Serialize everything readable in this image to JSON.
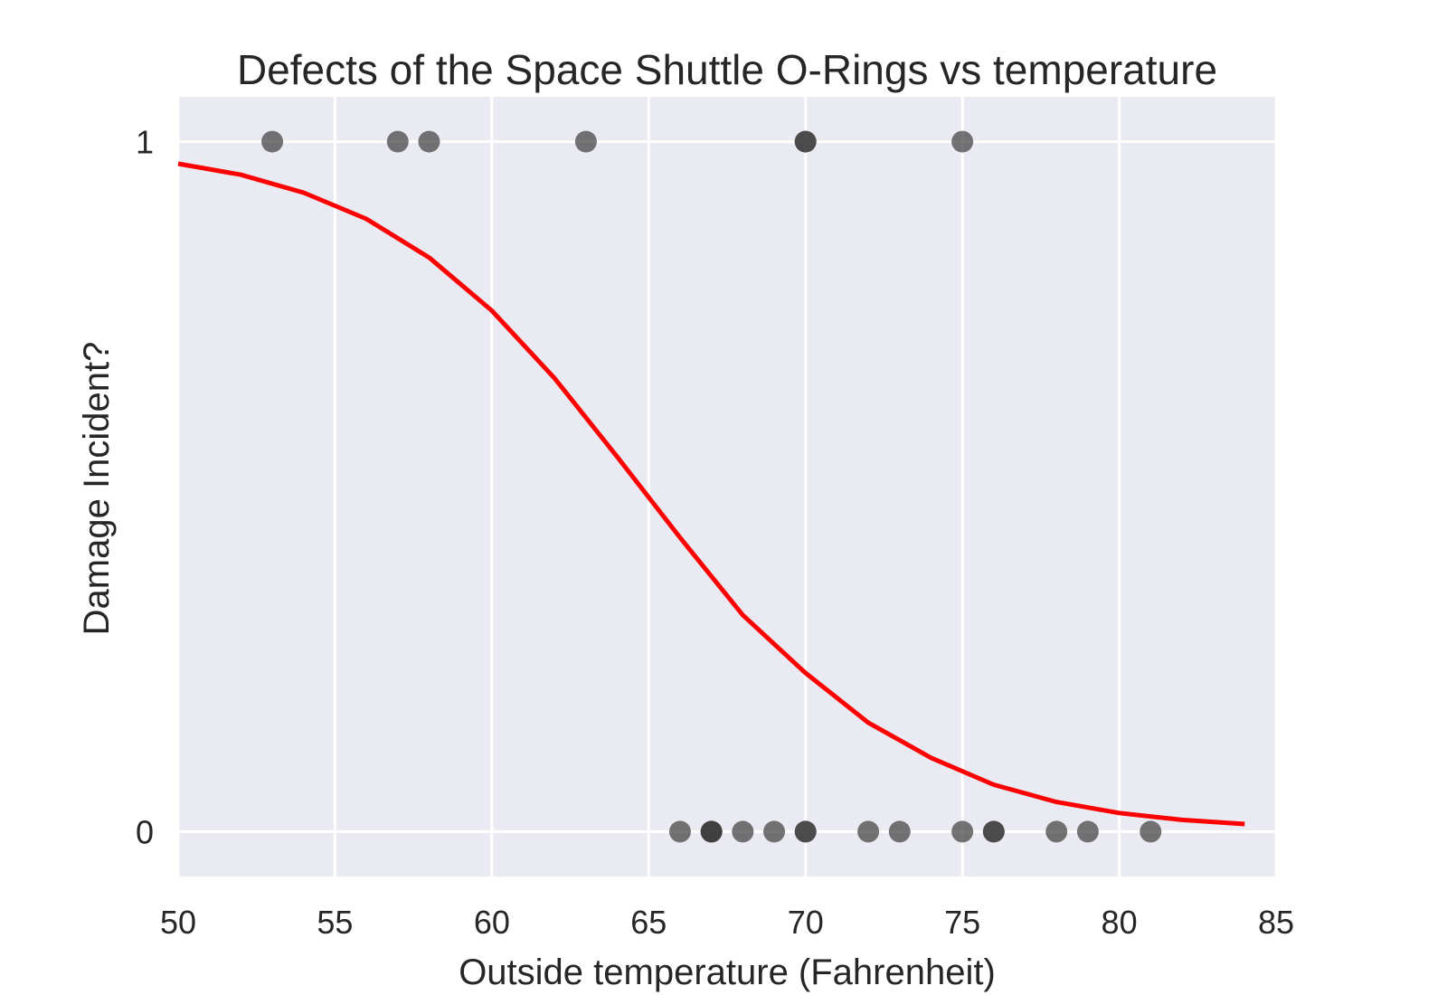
{
  "chart_data": {
    "type": "scatter",
    "title": "Defects of the Space Shuttle O-Rings vs temperature",
    "xlabel": "Outside temperature (Fahrenheit)",
    "ylabel": "Damage Incident?",
    "xlim": [
      50,
      85
    ],
    "ylim": [
      -0.065,
      1.065
    ],
    "xticks": [
      50,
      55,
      60,
      65,
      70,
      75,
      80,
      85
    ],
    "yticks": [
      0,
      1
    ],
    "grid": true,
    "colors": {
      "background": "#eaeaf2",
      "grid": "#ffffff",
      "points": "#3c3c3c",
      "curve": "#ff0000"
    },
    "series": [
      {
        "type": "scatter",
        "points": [
          {
            "x": 66,
            "y": 0
          },
          {
            "x": 70,
            "y": 1
          },
          {
            "x": 69,
            "y": 0
          },
          {
            "x": 68,
            "y": 0
          },
          {
            "x": 67,
            "y": 0
          },
          {
            "x": 72,
            "y": 0
          },
          {
            "x": 73,
            "y": 0
          },
          {
            "x": 70,
            "y": 0
          },
          {
            "x": 57,
            "y": 1
          },
          {
            "x": 63,
            "y": 1
          },
          {
            "x": 70,
            "y": 1
          },
          {
            "x": 78,
            "y": 0
          },
          {
            "x": 67,
            "y": 0
          },
          {
            "x": 53,
            "y": 1
          },
          {
            "x": 67,
            "y": 0
          },
          {
            "x": 75,
            "y": 0
          },
          {
            "x": 70,
            "y": 0
          },
          {
            "x": 81,
            "y": 0
          },
          {
            "x": 76,
            "y": 0
          },
          {
            "x": 79,
            "y": 0
          },
          {
            "x": 75,
            "y": 1
          },
          {
            "x": 76,
            "y": 0
          },
          {
            "x": 58,
            "y": 1
          }
        ]
      },
      {
        "type": "line",
        "points": [
          {
            "x": 50,
            "y": 0.968
          },
          {
            "x": 52,
            "y": 0.952
          },
          {
            "x": 54,
            "y": 0.926
          },
          {
            "x": 56,
            "y": 0.888
          },
          {
            "x": 58,
            "y": 0.832
          },
          {
            "x": 60,
            "y": 0.755
          },
          {
            "x": 62,
            "y": 0.657
          },
          {
            "x": 64,
            "y": 0.543
          },
          {
            "x": 66,
            "y": 0.426
          },
          {
            "x": 68,
            "y": 0.314
          },
          {
            "x": 70,
            "y": 0.23
          },
          {
            "x": 72,
            "y": 0.158
          },
          {
            "x": 74,
            "y": 0.107
          },
          {
            "x": 76,
            "y": 0.068
          },
          {
            "x": 78,
            "y": 0.043
          },
          {
            "x": 80,
            "y": 0.027
          },
          {
            "x": 82,
            "y": 0.017
          },
          {
            "x": 84,
            "y": 0.011
          }
        ]
      }
    ]
  }
}
